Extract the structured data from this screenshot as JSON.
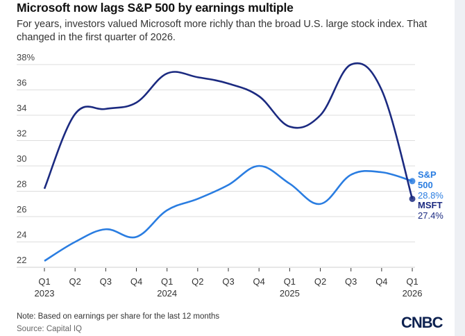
{
  "header": {
    "title": "Microsoft now lags S&P 500 by earnings multiple",
    "subtitle": "For years, investors valued Microsoft more richly than the broad U.S. large stock index. That changed in the first quarter of 2026."
  },
  "footer": {
    "note": "Note: Based on earnings per share for the last 12 months",
    "source": "Source: Capital IQ",
    "logo": "CNBC"
  },
  "colors": {
    "msft": "#1b2a80",
    "sp500": "#2a7de1",
    "grid": "#dddddd"
  },
  "chart_data": {
    "type": "line",
    "title": "Microsoft now lags S&P 500 by earnings multiple",
    "categories": [
      "Q1 2023",
      "Q2 2023",
      "Q3 2023",
      "Q4 2023",
      "Q1 2024",
      "Q2 2024",
      "Q3 2024",
      "Q4 2024",
      "Q1 2025",
      "Q2 2025",
      "Q3 2025",
      "Q4 2025",
      "Q1 2026"
    ],
    "tick_labels": [
      [
        "Q1",
        "2023"
      ],
      [
        "Q2",
        ""
      ],
      [
        "Q3",
        ""
      ],
      [
        "Q4",
        ""
      ],
      [
        "Q1",
        "2024"
      ],
      [
        "Q2",
        ""
      ],
      [
        "Q3",
        ""
      ],
      [
        "Q4",
        ""
      ],
      [
        "Q1",
        "2025"
      ],
      [
        "Q2",
        ""
      ],
      [
        "Q3",
        ""
      ],
      [
        "Q4",
        ""
      ],
      [
        "Q1",
        "2026"
      ]
    ],
    "yticks": [
      22,
      24,
      26,
      28,
      30,
      32,
      34,
      36,
      38
    ],
    "ytick_labels": [
      "22",
      "24",
      "26",
      "28",
      "30",
      "32",
      "34",
      "36",
      "38%"
    ],
    "ylim": [
      22,
      38
    ],
    "grid": true,
    "series": [
      {
        "name": "MSFT",
        "label_lines": [
          "MSFT"
        ],
        "end_label": "27.4%",
        "values": [
          28.2,
          34.1,
          34.5,
          35.0,
          37.3,
          37.0,
          36.5,
          35.5,
          33.1,
          34.0,
          38.0,
          36.0,
          27.4
        ]
      },
      {
        "name": "S&P 500",
        "label_lines": [
          "S&P",
          "500"
        ],
        "end_label": "28.8%",
        "values": [
          22.5,
          24.0,
          25.0,
          24.4,
          26.5,
          27.4,
          28.5,
          30.0,
          28.6,
          27.0,
          29.3,
          29.5,
          28.8
        ]
      }
    ]
  }
}
